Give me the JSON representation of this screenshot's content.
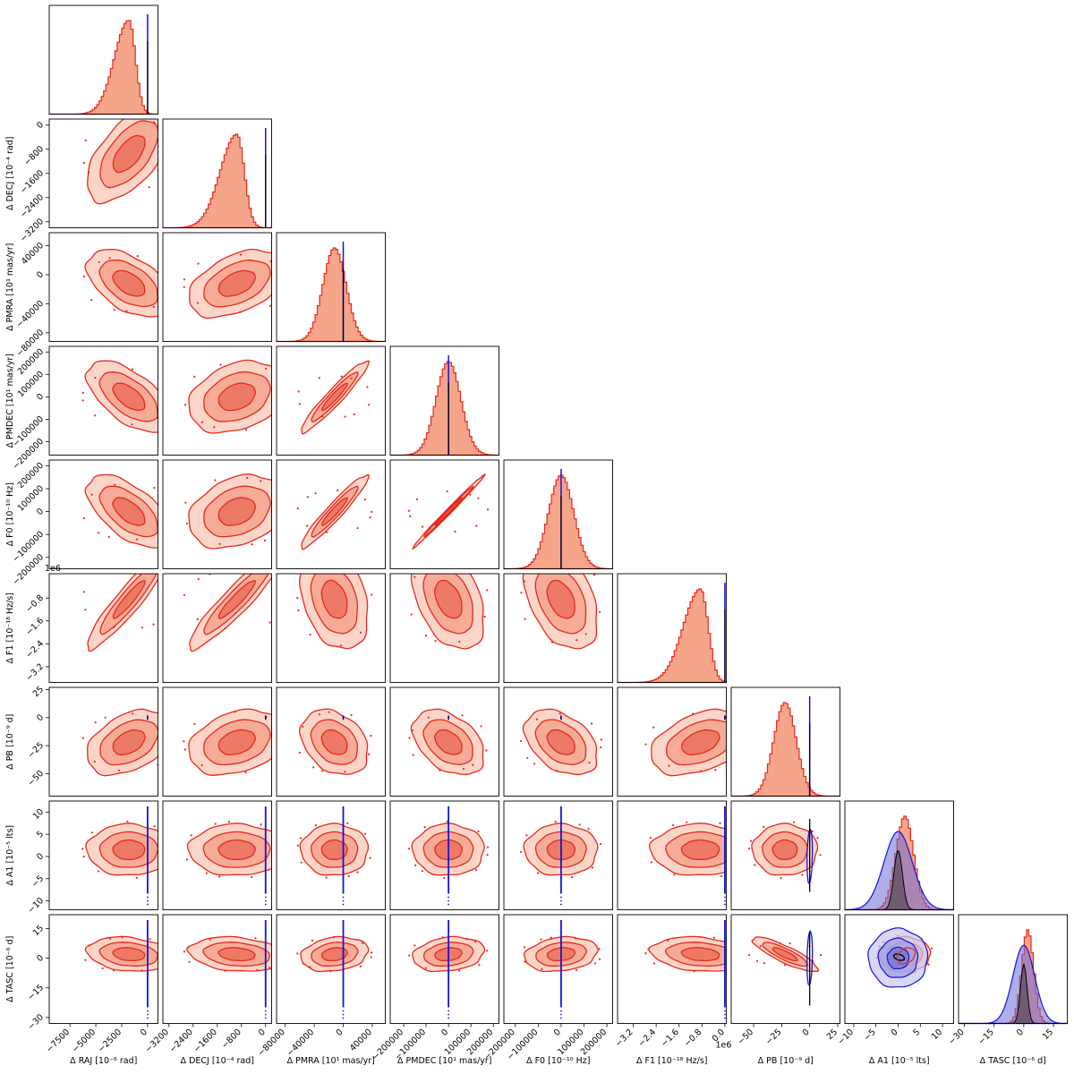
{
  "chart_data": {
    "type": "corner",
    "parameters": [
      {
        "id": "RAJ",
        "label": "Δ RAJ [10⁻⁶ rad]",
        "ticks": [
          -7500,
          -5000,
          -2500,
          0
        ],
        "tick_labels": [
          "−7500",
          "−5000",
          "−2500",
          "0"
        ],
        "range": [
          -9500,
          1000
        ],
        "diag_peak": -1800,
        "diag_sd": 1400,
        "diag_skew": "left"
      },
      {
        "id": "DECJ",
        "label": "Δ DECJ [10⁻⁴ rad]",
        "ticks": [
          -3200,
          -2400,
          -1600,
          -800,
          0
        ],
        "tick_labels": [
          "−3200",
          "−2400",
          "−1600",
          "−800",
          "0"
        ],
        "range": [
          -3400,
          200
        ],
        "diag_peak": -950,
        "diag_sd": 550,
        "diag_skew": "left"
      },
      {
        "id": "PMRA",
        "label": "Δ PMRA [10¹ mas/yr]",
        "ticks": [
          -80000,
          -40000,
          0,
          40000
        ],
        "tick_labels": [
          "−80000",
          "−40000",
          "0",
          "40000"
        ],
        "range": [
          -92000,
          58000
        ],
        "diag_peak": -12000,
        "diag_sd": 16000,
        "diag_skew": "none"
      },
      {
        "id": "PMDEC",
        "label": "Δ PMDEC [10¹ mas/yr]",
        "ticks": [
          -200000,
          -100000,
          0,
          100000,
          200000
        ],
        "tick_labels": [
          "−200000",
          "−100000",
          "0",
          "100000",
          "200000"
        ],
        "range": [
          -260000,
          225000
        ],
        "diag_peak": 0,
        "diag_sd": 55000,
        "diag_skew": "none"
      },
      {
        "id": "F0",
        "label": "Δ F0 [10⁻¹⁰ Hz]",
        "ticks": [
          -200000,
          -100000,
          0,
          100000,
          200000
        ],
        "tick_labels": [
          "−200000",
          "−100000",
          "0",
          "100000",
          "200000"
        ],
        "range": [
          -250000,
          225000
        ],
        "diag_peak": 0,
        "diag_sd": 55000,
        "diag_skew": "none"
      },
      {
        "id": "F1",
        "label": "Δ F1 [10⁻¹⁸ Hz/s]",
        "ticks": [
          -3.2,
          -2.4,
          -1.6,
          -0.8,
          0.0
        ],
        "tick_labels": [
          "−3.2",
          "−2.4",
          "−1.6",
          "−0.8",
          "0.0"
        ],
        "range": [
          -3.75,
          0.05
        ],
        "diag_peak": -0.85,
        "diag_sd": 0.6,
        "diag_skew": "left",
        "offset_label": "1e6"
      },
      {
        "id": "PB",
        "label": "Δ PB [10⁻⁹ d]",
        "ticks": [
          -50,
          -25,
          0,
          25
        ],
        "tick_labels": [
          "−50",
          "−25",
          "0",
          "25"
        ],
        "range": [
          -70,
          27
        ],
        "diag_peak": -22,
        "diag_sd": 10,
        "diag_skew": "none"
      },
      {
        "id": "A1",
        "label": "Δ A1 [10⁻⁵ lts]",
        "ticks": [
          -10,
          -5,
          0,
          5,
          10
        ],
        "tick_labels": [
          "−10",
          "−5",
          "0",
          "5",
          "10"
        ],
        "range": [
          -12,
          12.5
        ],
        "diag_peak": 1.5,
        "diag_sd": 2,
        "diag_skew": "none"
      },
      {
        "id": "TASC",
        "label": "Δ TASC [10⁻⁶ d]",
        "ticks": [
          -30,
          -15,
          0,
          15
        ],
        "tick_labels": [
          "−30",
          "−15",
          "0",
          "15"
        ],
        "range": [
          -33,
          22
        ],
        "diag_peak": 2,
        "diag_sd": 3,
        "diag_skew": "none"
      }
    ],
    "y_axis": [
      {
        "row": 1,
        "ticks": [
          -3200,
          -2400,
          -1600,
          -800,
          0
        ],
        "tick_labels": [
          "−3200",
          "−2400",
          "−1600",
          "−800",
          "0"
        ]
      },
      {
        "row": 2,
        "ticks": [
          -80000,
          -40000,
          0,
          40000
        ],
        "tick_labels": [
          "−80000",
          "−40000",
          "0",
          "40000"
        ]
      },
      {
        "row": 3,
        "ticks": [
          -200000,
          -100000,
          0,
          100000,
          200000
        ],
        "tick_labels": [
          "−200000",
          "−100000",
          "0",
          "100000",
          "200000"
        ]
      },
      {
        "row": 4,
        "ticks": [
          -200000,
          -100000,
          0,
          100000,
          200000
        ],
        "tick_labels": [
          "−200000",
          "−100000",
          "0",
          "100000",
          "200000"
        ]
      },
      {
        "row": 5,
        "ticks": [
          -3.2,
          -2.4,
          -1.6,
          -0.8
        ],
        "tick_labels": [
          "−3.2",
          "−2.4",
          "−1.6",
          "−0.8"
        ],
        "offset_label": "1e6"
      },
      {
        "row": 6,
        "ticks": [
          -50,
          -25,
          0,
          25
        ],
        "tick_labels": [
          "−50",
          "−25",
          "0",
          "25"
        ]
      },
      {
        "row": 7,
        "ticks": [
          -10,
          -5,
          0,
          5,
          10
        ],
        "tick_labels": [
          "−10",
          "−5",
          "0",
          "5",
          "10"
        ]
      },
      {
        "row": 8,
        "ticks": [
          -30,
          -15,
          0,
          15
        ],
        "tick_labels": [
          "−30",
          "−15",
          "0",
          "15"
        ]
      }
    ],
    "correlations": {
      "1-0": 0.6,
      "2-0": -0.5,
      "2-1": 0.45,
      "3-0": -0.6,
      "3-1": 0.3,
      "3-2": 0.95,
      "4-0": -0.6,
      "4-1": 0.3,
      "4-2": 0.95,
      "4-3": 0.995,
      "5-0": 0.93,
      "5-1": 0.93,
      "5-2": -0.3,
      "5-3": -0.4,
      "5-4": -0.4,
      "6-0": 0.4,
      "6-1": 0.3,
      "6-2": -0.3,
      "6-3": -0.4,
      "6-4": -0.4,
      "6-5": 0.4,
      "7-0": 0.0,
      "7-1": 0.0,
      "7-2": 0.0,
      "7-3": 0.0,
      "7-4": 0.0,
      "7-5": 0.0,
      "7-6": 0.0,
      "7-7": 0.0,
      "8-0": -0.2,
      "8-1": -0.2,
      "8-2": 0.2,
      "8-3": 0.2,
      "8-4": 0.2,
      "8-5": -0.2,
      "8-6": -0.85,
      "8-7": 0.0
    },
    "series": [
      {
        "name": "",
        "color": "#e8281d",
        "fill": "#f5a58a"
      },
      {
        "name": "",
        "color": "#1414dc",
        "fill": "#6b6bd6"
      },
      {
        "name": "",
        "color": "#000000",
        "fill": "#555555"
      }
    ],
    "reference_value": 0,
    "grid": false
  }
}
